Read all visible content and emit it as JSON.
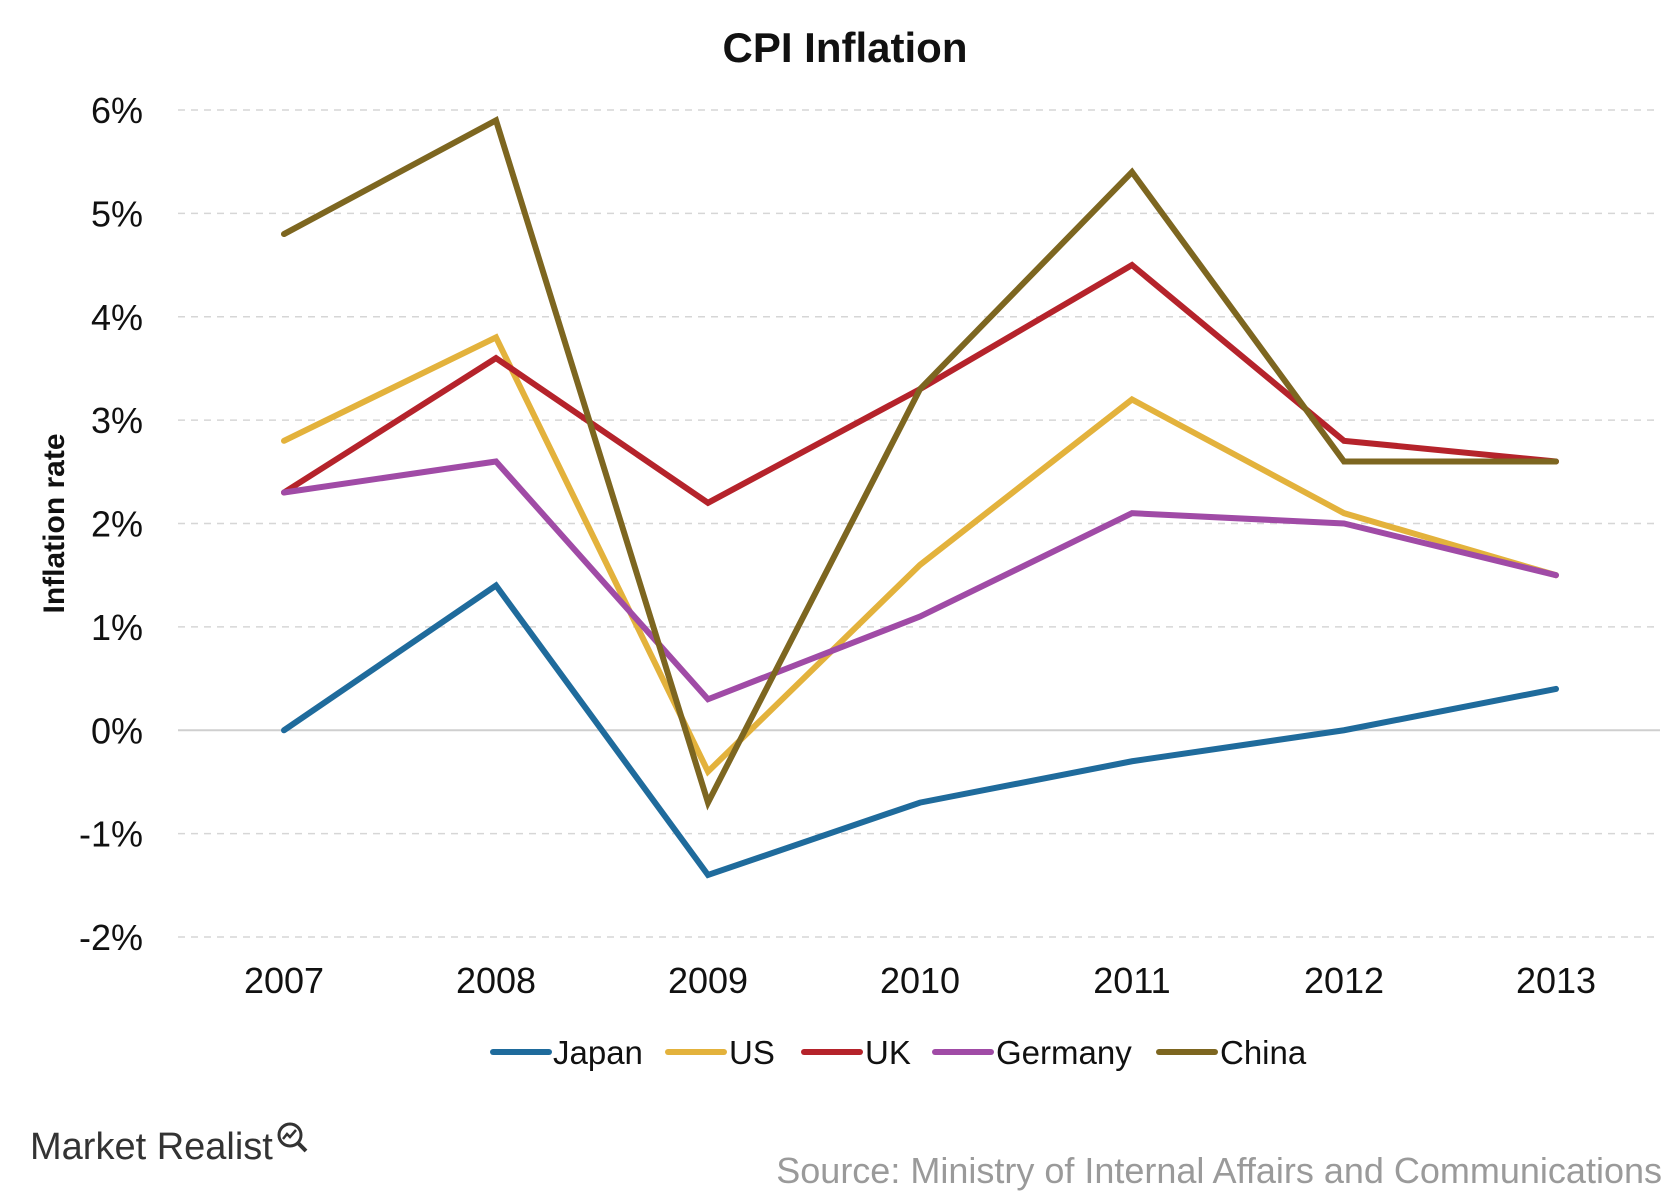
{
  "chart_data": {
    "type": "line",
    "title": "CPI Inflation",
    "ylabel": "Inflation rate",
    "xlabel": "",
    "categories": [
      "2007",
      "2008",
      "2009",
      "2010",
      "2011",
      "2012",
      "2013"
    ],
    "ylim": [
      -2,
      6
    ],
    "yticks": [
      6,
      5,
      4,
      3,
      2,
      1,
      0,
      -1,
      -2
    ],
    "ytick_labels": [
      "6%",
      "5%",
      "4%",
      "3%",
      "2%",
      "1%",
      "0%",
      "-1%",
      "-2%"
    ],
    "grid": true,
    "legend_position": "bottom",
    "series": [
      {
        "name": "Japan",
        "color": "#1f6b9c",
        "values": [
          0.0,
          1.4,
          -1.4,
          -0.7,
          -0.3,
          0.0,
          0.4
        ]
      },
      {
        "name": "US",
        "color": "#e3b23c",
        "values": [
          2.8,
          3.8,
          -0.4,
          1.6,
          3.2,
          2.1,
          1.5
        ]
      },
      {
        "name": "UK",
        "color": "#b5232b",
        "values": [
          2.3,
          3.6,
          2.2,
          3.3,
          4.5,
          2.8,
          2.6
        ]
      },
      {
        "name": "Germany",
        "color": "#a04ba6",
        "values": [
          2.3,
          2.6,
          0.3,
          1.1,
          2.1,
          2.0,
          1.5
        ]
      },
      {
        "name": "China",
        "color": "#7d6620",
        "values": [
          4.8,
          5.9,
          -0.7,
          3.3,
          5.4,
          2.6,
          2.6
        ]
      }
    ]
  },
  "footer": {
    "brand": "Market Realist",
    "source": "Source: Ministry of Internal Affairs and Communications"
  }
}
